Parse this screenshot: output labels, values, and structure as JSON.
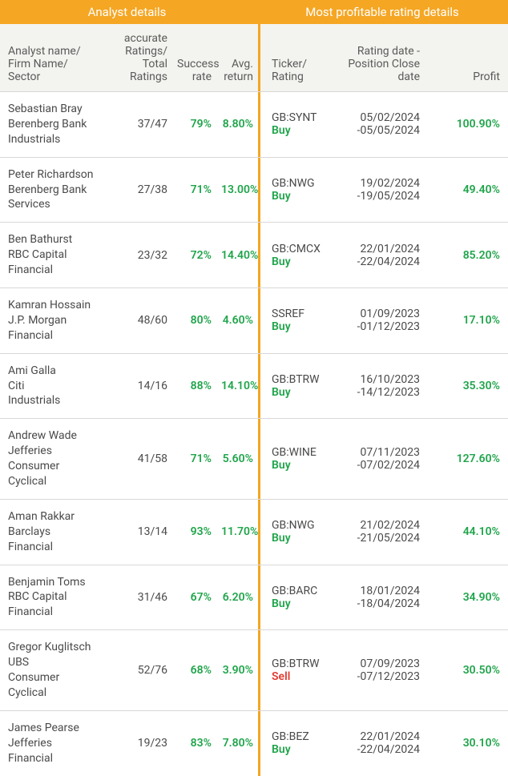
{
  "colors": {
    "header_bg": "#f5a623",
    "divider": "#f5a623",
    "subheader_bg": "#f3f3ef",
    "green": "#1fa44a",
    "red": "#e03c31",
    "text": "#4a4a4a"
  },
  "headers": {
    "left": "Analyst details",
    "right": "Most profitable rating details"
  },
  "subheaders": {
    "analyst": "Analyst name/\nFirm Name/\nSector",
    "ratings": "accurate\nRatings/\nTotal Ratings",
    "success": "Success\nrate",
    "avg_return": "Avg.\nreturn",
    "ticker": "Ticker/\nRating",
    "dates": "Rating date -\nPosition Close date",
    "profit": "Profit"
  },
  "rows": [
    {
      "analyst": "Sebastian Bray",
      "firm": "Berenberg Bank",
      "sector": "Industrials",
      "ratings": "37/47",
      "success": "79%",
      "avg_return": "8.80%",
      "ticker": "GB:SYNT",
      "rating": "Buy",
      "rating_kind": "buy",
      "date1": "05/02/2024",
      "date2": "-05/05/2024",
      "profit": "100.90%"
    },
    {
      "analyst": "Peter Richardson",
      "firm": "Berenberg Bank",
      "sector": "Services",
      "ratings": "27/38",
      "success": "71%",
      "avg_return": "13.00%",
      "ticker": "GB:NWG",
      "rating": "Buy",
      "rating_kind": "buy",
      "date1": "19/02/2024",
      "date2": "-19/05/2024",
      "profit": "49.40%"
    },
    {
      "analyst": "Ben Bathurst",
      "firm": "RBC Capital",
      "sector": "Financial",
      "ratings": "23/32",
      "success": "72%",
      "avg_return": "14.40%",
      "ticker": "GB:CMCX",
      "rating": "Buy",
      "rating_kind": "buy",
      "date1": "22/01/2024",
      "date2": "-22/04/2024",
      "profit": "85.20%"
    },
    {
      "analyst": "Kamran Hossain",
      "firm": "J.P. Morgan",
      "sector": "Financial",
      "ratings": "48/60",
      "success": "80%",
      "avg_return": "4.60%",
      "ticker": "SSREF",
      "rating": "Buy",
      "rating_kind": "buy",
      "date1": "01/09/2023",
      "date2": "-01/12/2023",
      "profit": "17.10%"
    },
    {
      "analyst": "Ami Galla",
      "firm": "Citi",
      "sector": "Industrials",
      "ratings": "14/16",
      "success": "88%",
      "avg_return": "14.10%",
      "ticker": "GB:BTRW",
      "rating": "Buy",
      "rating_kind": "buy",
      "date1": "16/10/2023",
      "date2": "-14/12/2023",
      "profit": "35.30%"
    },
    {
      "analyst": "Andrew Wade",
      "firm": "Jefferies",
      "sector": "Consumer Cyclical",
      "ratings": "41/58",
      "success": "71%",
      "avg_return": "5.60%",
      "ticker": "GB:WINE",
      "rating": "Buy",
      "rating_kind": "buy",
      "date1": "07/11/2023",
      "date2": "-07/02/2024",
      "profit": "127.60%"
    },
    {
      "analyst": "Aman Rakkar",
      "firm": "Barclays",
      "sector": "Financial",
      "ratings": "13/14",
      "success": "93%",
      "avg_return": "11.70%",
      "ticker": "GB:NWG",
      "rating": "Buy",
      "rating_kind": "buy",
      "date1": "21/02/2024",
      "date2": "-21/05/2024",
      "profit": "44.10%"
    },
    {
      "analyst": "Benjamin Toms",
      "firm": "RBC Capital",
      "sector": "Financial",
      "ratings": "31/46",
      "success": "67%",
      "avg_return": "6.20%",
      "ticker": "GB:BARC",
      "rating": "Buy",
      "rating_kind": "buy",
      "date1": "18/01/2024",
      "date2": "-18/04/2024",
      "profit": "34.90%"
    },
    {
      "analyst": "Gregor Kuglitsch",
      "firm": "UBS",
      "sector": "Consumer Cyclical",
      "ratings": "52/76",
      "success": "68%",
      "avg_return": "3.90%",
      "ticker": "GB:BTRW",
      "rating": "Sell",
      "rating_kind": "sell",
      "date1": "07/09/2023",
      "date2": "-07/12/2023",
      "profit": "30.50%"
    },
    {
      "analyst": "James Pearse",
      "firm": "Jefferies",
      "sector": "Financial",
      "ratings": "19/23",
      "success": "83%",
      "avg_return": "7.80%",
      "ticker": "GB:BEZ",
      "rating": "Buy",
      "rating_kind": "buy",
      "date1": "22/01/2024",
      "date2": "-22/04/2024",
      "profit": "30.10%"
    }
  ]
}
